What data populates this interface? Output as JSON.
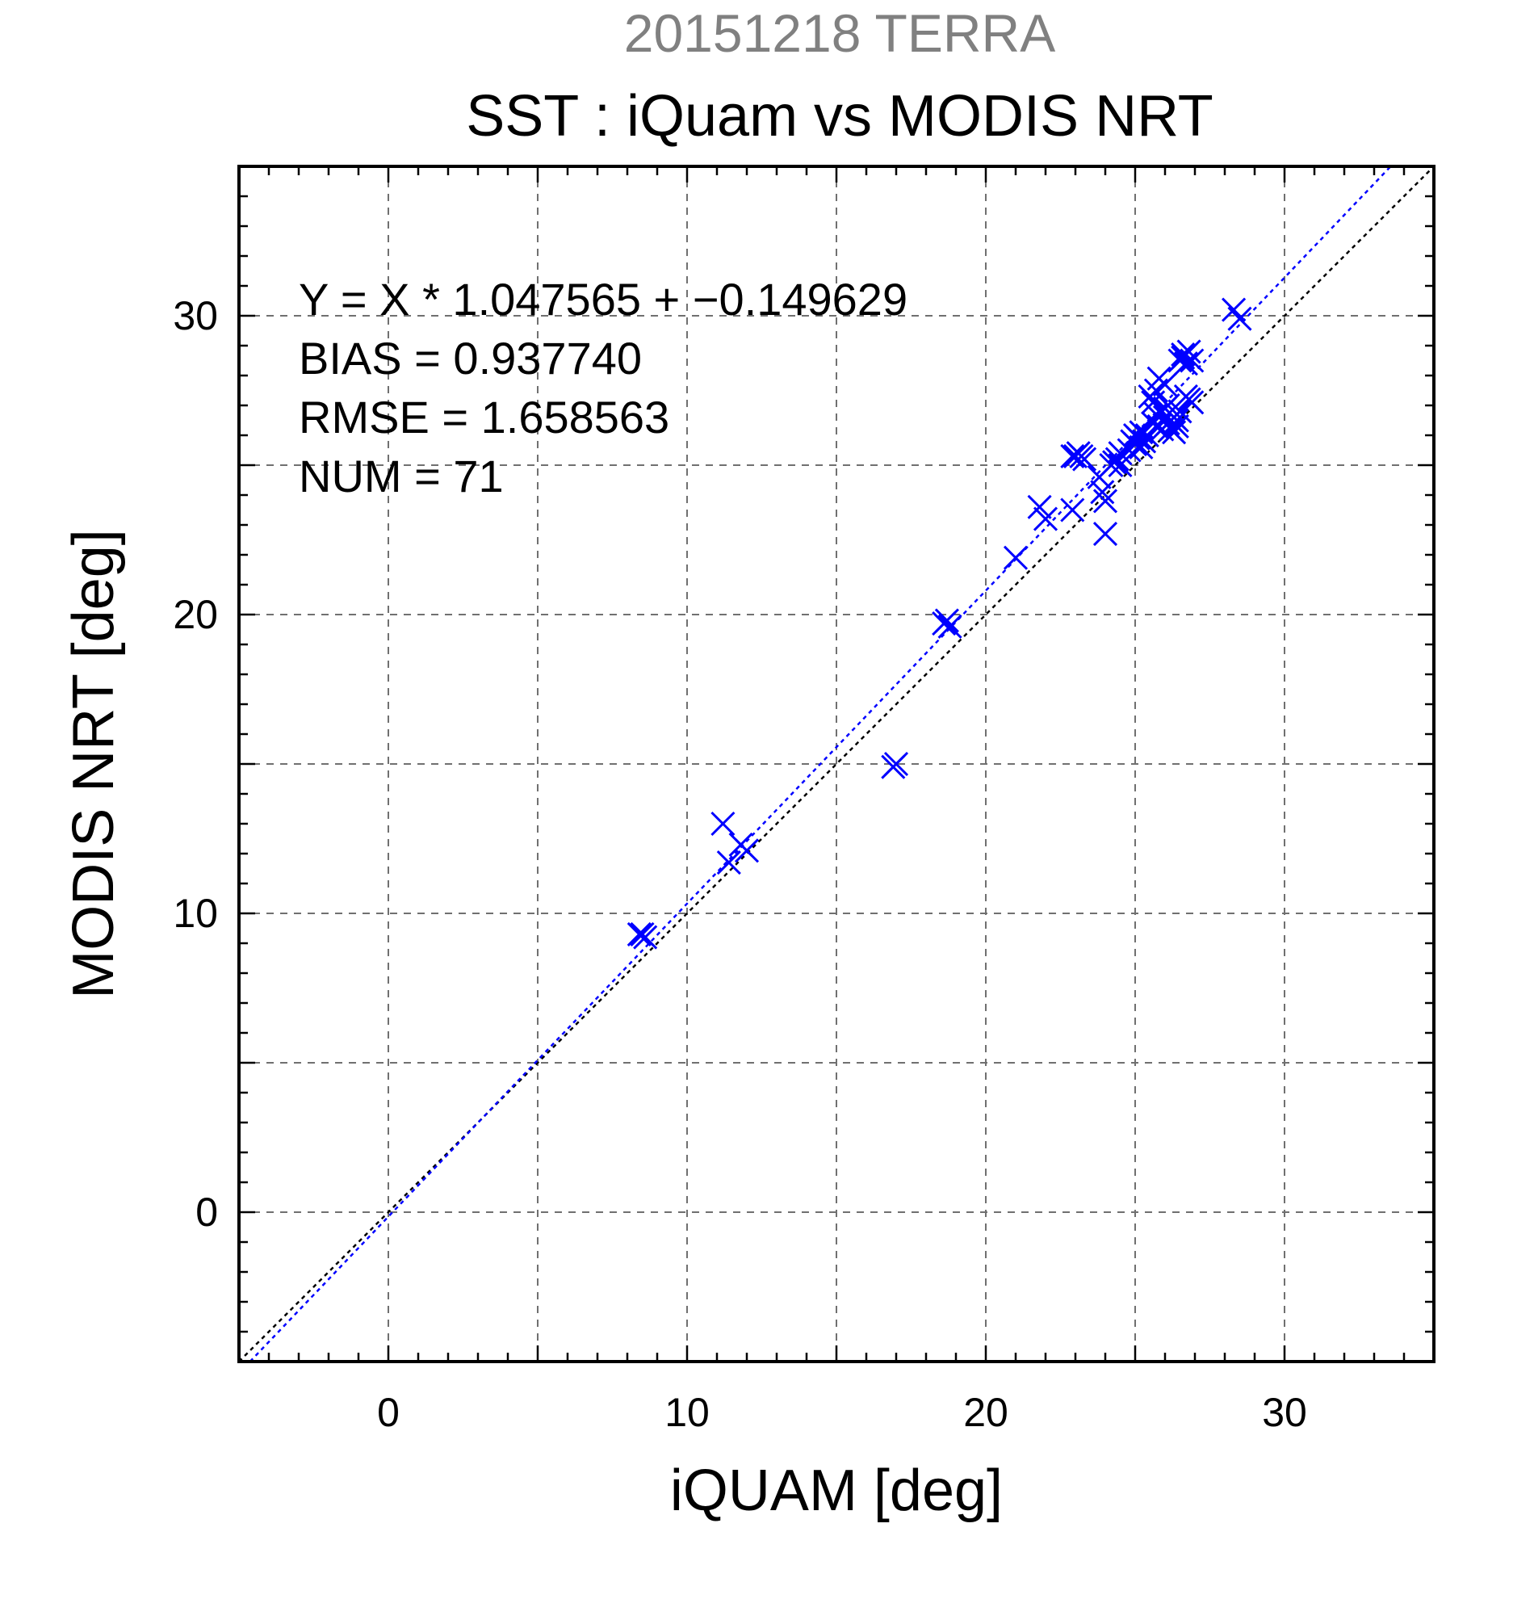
{
  "chart_data": {
    "type": "scatter",
    "title": "20151218 TERRA",
    "subtitle": "SST : iQuam vs MODIS NRT",
    "xlabel": "iQUAM [deg]",
    "ylabel": "MODIS NRT [deg]",
    "xlim": [
      -5,
      35
    ],
    "ylim": [
      -5,
      35
    ],
    "xticks": [
      0,
      10,
      20,
      30
    ],
    "yticks": [
      0,
      10,
      20,
      30
    ],
    "grid_step": 5,
    "grid": true,
    "marker_color": "#0000ff",
    "marker": "x",
    "stats": [
      "Y = X * 1.047565 + −0.149629",
      "BIAS = 0.937740",
      "RMSE = 1.658563",
      "NUM = 71"
    ],
    "fit_line": {
      "slope": 1.047565,
      "intercept": -0.149629,
      "color": "#0000ff",
      "style": "dotted"
    },
    "identity_line": {
      "slope": 1,
      "intercept": 0,
      "color": "#000000",
      "style": "dotted"
    },
    "points": [
      {
        "x": 8.5,
        "y": 9.3
      },
      {
        "x": 8.6,
        "y": 9.2
      },
      {
        "x": 8.4,
        "y": 9.3
      },
      {
        "x": 11.2,
        "y": 13.0
      },
      {
        "x": 11.4,
        "y": 11.7
      },
      {
        "x": 11.8,
        "y": 12.3
      },
      {
        "x": 12.0,
        "y": 12.1
      },
      {
        "x": 17.0,
        "y": 15.0
      },
      {
        "x": 16.9,
        "y": 14.9
      },
      {
        "x": 18.7,
        "y": 19.8
      },
      {
        "x": 18.8,
        "y": 19.6
      },
      {
        "x": 18.6,
        "y": 19.7
      },
      {
        "x": 21.0,
        "y": 21.9
      },
      {
        "x": 21.8,
        "y": 23.6
      },
      {
        "x": 22.0,
        "y": 23.2
      },
      {
        "x": 22.9,
        "y": 23.5
      },
      {
        "x": 23.0,
        "y": 25.3
      },
      {
        "x": 23.1,
        "y": 25.4
      },
      {
        "x": 22.9,
        "y": 25.3
      },
      {
        "x": 23.2,
        "y": 25.3
      },
      {
        "x": 23.8,
        "y": 24.6
      },
      {
        "x": 23.9,
        "y": 24.1
      },
      {
        "x": 24.0,
        "y": 23.8
      },
      {
        "x": 24.0,
        "y": 22.7
      },
      {
        "x": 24.3,
        "y": 25.1
      },
      {
        "x": 24.5,
        "y": 25.0
      },
      {
        "x": 24.4,
        "y": 25.2
      },
      {
        "x": 24.9,
        "y": 25.8
      },
      {
        "x": 25.0,
        "y": 25.7
      },
      {
        "x": 25.1,
        "y": 25.9
      },
      {
        "x": 25.2,
        "y": 25.6
      },
      {
        "x": 25.3,
        "y": 25.8
      },
      {
        "x": 25.0,
        "y": 26.0
      },
      {
        "x": 25.5,
        "y": 27.3
      },
      {
        "x": 25.6,
        "y": 27.1
      },
      {
        "x": 25.7,
        "y": 27.5
      },
      {
        "x": 25.8,
        "y": 26.3
      },
      {
        "x": 25.9,
        "y": 26.8
      },
      {
        "x": 25.8,
        "y": 27.9
      },
      {
        "x": 26.0,
        "y": 27.7
      },
      {
        "x": 26.0,
        "y": 26.6
      },
      {
        "x": 26.1,
        "y": 26.4
      },
      {
        "x": 26.2,
        "y": 26.5
      },
      {
        "x": 26.3,
        "y": 26.1
      },
      {
        "x": 26.3,
        "y": 26.6
      },
      {
        "x": 26.4,
        "y": 26.3
      },
      {
        "x": 26.2,
        "y": 26.2
      },
      {
        "x": 26.4,
        "y": 26.5
      },
      {
        "x": 26.5,
        "y": 28.5
      },
      {
        "x": 26.6,
        "y": 28.7
      },
      {
        "x": 26.7,
        "y": 28.4
      },
      {
        "x": 26.6,
        "y": 28.6
      },
      {
        "x": 26.8,
        "y": 28.8
      },
      {
        "x": 26.9,
        "y": 28.5
      },
      {
        "x": 26.8,
        "y": 27.2
      },
      {
        "x": 26.9,
        "y": 27.1
      },
      {
        "x": 26.7,
        "y": 27.3
      },
      {
        "x": 28.3,
        "y": 30.2
      },
      {
        "x": 28.5,
        "y": 29.9
      },
      {
        "x": 24.5,
        "y": 25.4
      },
      {
        "x": 25.4,
        "y": 26.0
      },
      {
        "x": 25.6,
        "y": 26.4
      },
      {
        "x": 26.0,
        "y": 26.9
      },
      {
        "x": 24.8,
        "y": 25.5
      },
      {
        "x": 25.7,
        "y": 26.7
      },
      {
        "x": 26.5,
        "y": 26.8
      },
      {
        "x": 25.2,
        "y": 26.1
      },
      {
        "x": 24.2,
        "y": 25.0
      },
      {
        "x": 23.3,
        "y": 25.2
      },
      {
        "x": 26.1,
        "y": 27.0
      },
      {
        "x": 25.9,
        "y": 26.2
      }
    ]
  }
}
